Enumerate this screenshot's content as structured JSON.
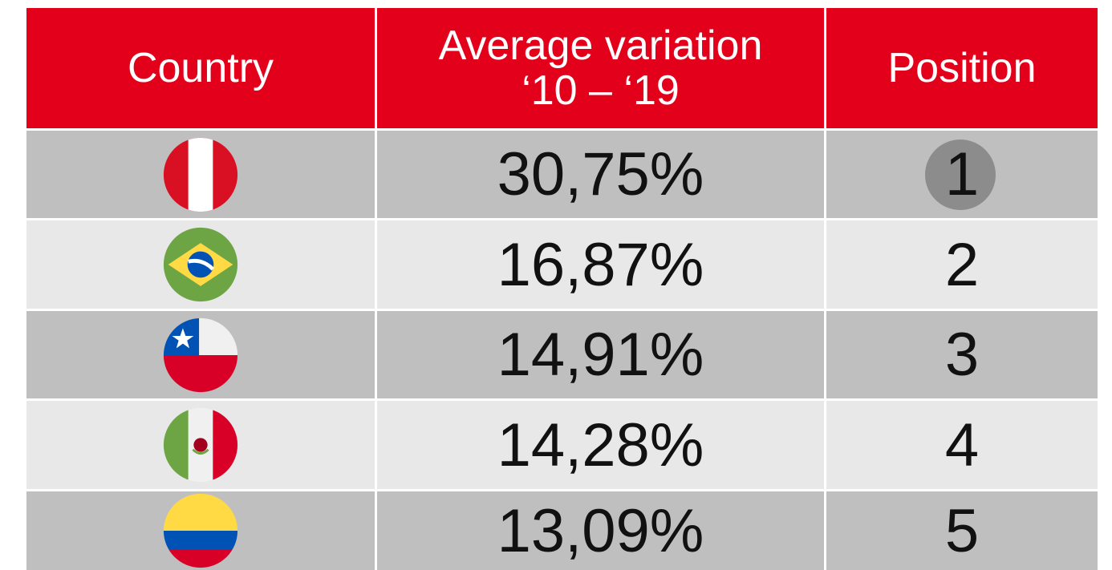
{
  "header": {
    "country": "Country",
    "variation": [
      "Average variation",
      "‘10 – ‘19"
    ],
    "position": "Position"
  },
  "rows": [
    {
      "variation": "30,75%",
      "position": "1"
    },
    {
      "variation": "16,87%",
      "position": "2"
    },
    {
      "variation": "14,91%",
      "position": "3"
    },
    {
      "variation": "14,28%",
      "position": "4"
    },
    {
      "variation": "13,09%",
      "position": "5"
    }
  ]
}
